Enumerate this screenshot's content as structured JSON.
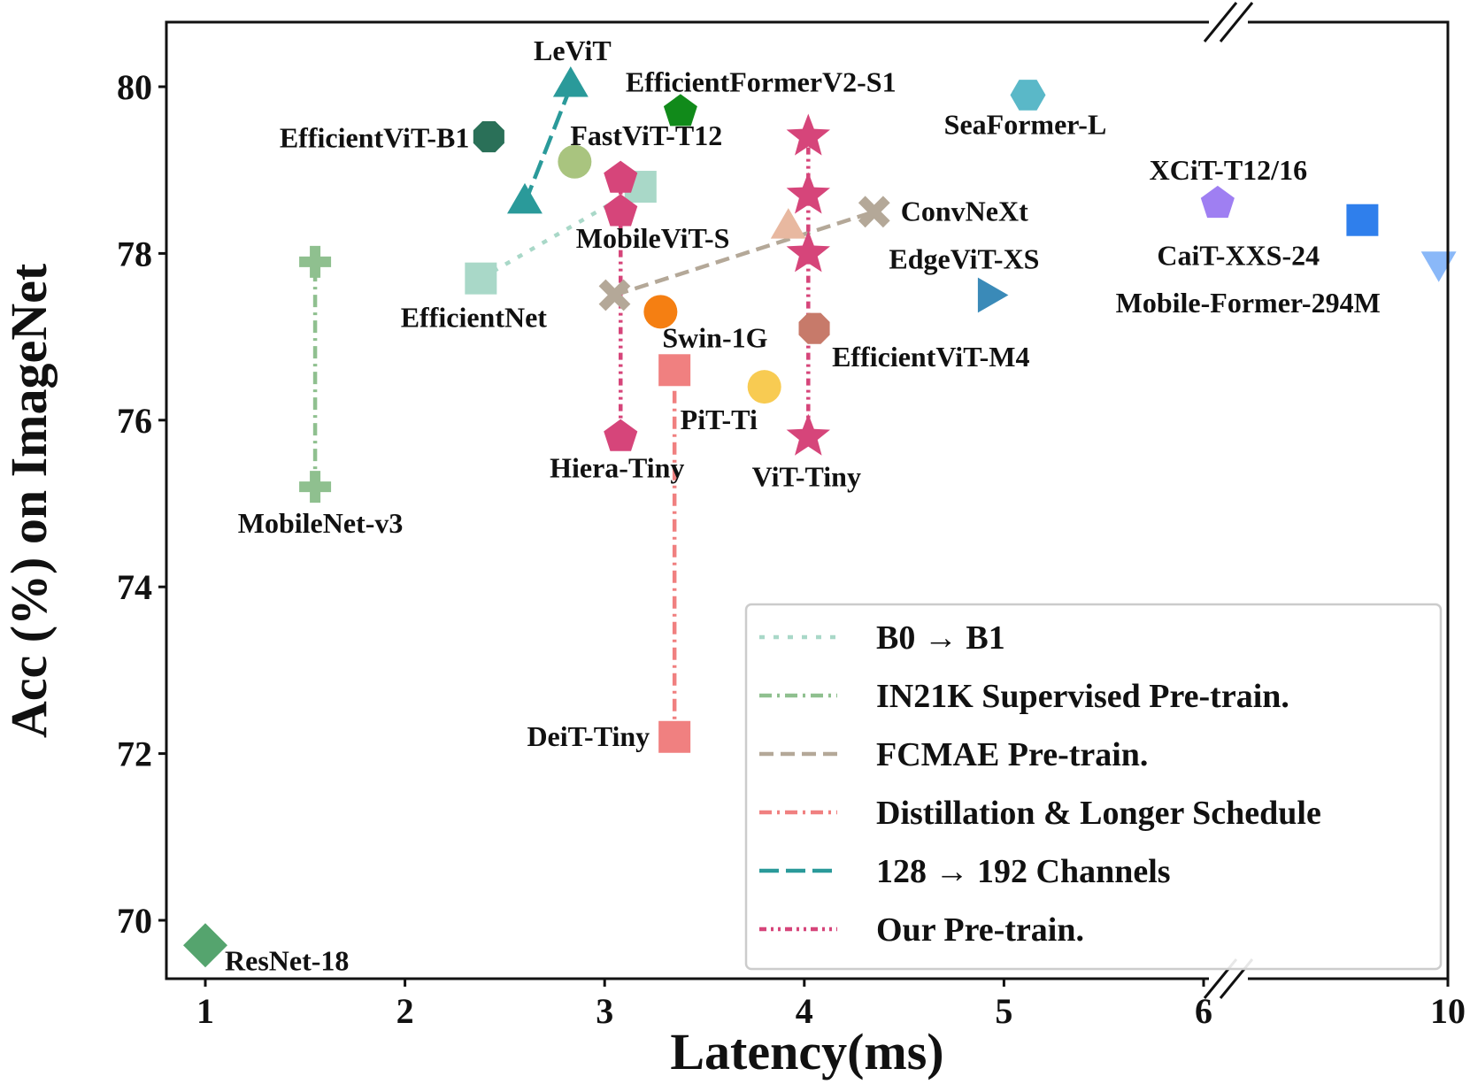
{
  "chart_data": {
    "type": "scatter",
    "xlabel": "Latency(ms)",
    "ylabel": "Acc (%) on ImageNet",
    "x_scale": "broken axis: linear 1-6, break, then 10",
    "x_ticks": [
      1,
      2,
      3,
      4,
      5,
      6,
      10
    ],
    "x_tick_labels": [
      "1",
      "2",
      "3",
      "4",
      "5",
      "6",
      "10"
    ],
    "y_ticks": [
      70,
      72,
      74,
      76,
      78,
      80
    ],
    "y_tick_labels": [
      "70",
      "72",
      "74",
      "76",
      "78",
      "80"
    ],
    "xlim": [
      0.8,
      10
    ],
    "ylim": [
      69.3,
      80.8
    ],
    "points": [
      {
        "name": "ResNet-18",
        "x": 1.0,
        "y": 69.7,
        "marker": "diamond",
        "color": "#55a46e"
      },
      {
        "name": "MobileNet-v3 (start)",
        "x": 1.55,
        "y": 75.2,
        "marker": "plus",
        "color": "#8fc08f"
      },
      {
        "name": "MobileNet-v3 (end)",
        "x": 1.55,
        "y": 77.9,
        "marker": "plus",
        "color": "#8fc08f"
      },
      {
        "name": "EfficientNet (B0)",
        "x": 2.38,
        "y": 77.7,
        "marker": "square",
        "color": "#a9d8c8"
      },
      {
        "name": "EfficientNet (B1)",
        "x": 3.18,
        "y": 78.8,
        "marker": "square",
        "color": "#a9d8c8"
      },
      {
        "name": "EfficientViT-B1",
        "x": 2.42,
        "y": 79.4,
        "marker": "octagon",
        "color": "#2a7058"
      },
      {
        "name": "LeViT (128)",
        "x": 2.6,
        "y": 78.6,
        "marker": "triangle-up",
        "color": "#2a9a9a"
      },
      {
        "name": "LeViT (192)",
        "x": 2.83,
        "y": 80.0,
        "marker": "triangle-up",
        "color": "#2a9a9a"
      },
      {
        "name": "FastViT-T12",
        "x": 2.85,
        "y": 79.1,
        "marker": "circle",
        "color": "#a9c47f"
      },
      {
        "name": "EfficientFormerV2-S1",
        "x": 3.38,
        "y": 79.7,
        "marker": "pentagon",
        "color": "#118a1a"
      },
      {
        "name": "Hiera-Tiny (base)",
        "x": 3.08,
        "y": 75.8,
        "marker": "pentagon",
        "color": "#d6457a"
      },
      {
        "name": "Hiera-Tiny (ours 1)",
        "x": 3.08,
        "y": 78.5,
        "marker": "pentagon",
        "color": "#d6457a"
      },
      {
        "name": "Hiera-Tiny (ours 2)",
        "x": 3.08,
        "y": 78.9,
        "marker": "pentagon",
        "color": "#d6457a"
      },
      {
        "name": "ConvNeXt (start)",
        "x": 3.05,
        "y": 77.5,
        "marker": "x",
        "color": "#b4a898"
      },
      {
        "name": "ConvNeXt (end)",
        "x": 4.35,
        "y": 78.5,
        "marker": "x",
        "color": "#b4a898"
      },
      {
        "name": "Swin-1G",
        "x": 3.28,
        "y": 77.3,
        "marker": "circle",
        "color": "#f57f12"
      },
      {
        "name": "MobileViT-S",
        "x": 3.92,
        "y": 78.3,
        "marker": "triangle-up",
        "color": "#e8b8a0"
      },
      {
        "name": "DeiT-Tiny (base)",
        "x": 3.35,
        "y": 72.2,
        "marker": "square",
        "color": "#f08080"
      },
      {
        "name": "DeiT-Tiny (distilled)",
        "x": 3.35,
        "y": 76.6,
        "marker": "square",
        "color": "#f08080"
      },
      {
        "name": "PiT-Ti",
        "x": 3.8,
        "y": 76.4,
        "marker": "circle",
        "color": "#f8cb52"
      },
      {
        "name": "ViT-Tiny (base)",
        "x": 4.02,
        "y": 75.8,
        "marker": "star",
        "color": "#d6457a"
      },
      {
        "name": "ViT-Tiny (ours 1)",
        "x": 4.02,
        "y": 78.0,
        "marker": "star",
        "color": "#d6457a"
      },
      {
        "name": "ViT-Tiny (ours 2)",
        "x": 4.02,
        "y": 78.7,
        "marker": "star",
        "color": "#d6457a"
      },
      {
        "name": "ViT-Tiny (ours 3)",
        "x": 4.02,
        "y": 79.4,
        "marker": "star",
        "color": "#d6457a"
      },
      {
        "name": "EfficientViT-M4",
        "x": 4.05,
        "y": 77.1,
        "marker": "octagon",
        "color": "#c77a6a"
      },
      {
        "name": "SeaFormer-L",
        "x": 5.12,
        "y": 79.9,
        "marker": "hexagon",
        "color": "#5ab8c8"
      },
      {
        "name": "EdgeViT-XS",
        "x": 4.92,
        "y": 77.5,
        "marker": "triangle-right",
        "color": "#3a8ab8"
      },
      {
        "name": "XCiT-T12/16",
        "x": 6.23,
        "y": 78.6,
        "marker": "pentagon",
        "color": "#9f7ff2"
      },
      {
        "name": "CaiT-XXS-24",
        "x": 8.6,
        "y": 78.4,
        "marker": "square",
        "color": "#2f7fec"
      },
      {
        "name": "Mobile-Former-294M",
        "x": 9.85,
        "y": 77.9,
        "marker": "triangle-down",
        "color": "#8ab8f8"
      }
    ],
    "lines": [
      {
        "legend": "B0 → B1",
        "from": [
          2.38,
          77.7
        ],
        "to": [
          3.18,
          78.8
        ],
        "style": "dotted",
        "color": "#a9d8c8"
      },
      {
        "legend": "IN21K Supervised Pre-train.",
        "from": [
          1.55,
          75.2
        ],
        "to": [
          1.55,
          77.9
        ],
        "style": "dashdot",
        "color": "#8fc08f"
      },
      {
        "legend": "FCMAE Pre-train.",
        "from": [
          3.05,
          77.5
        ],
        "to": [
          4.35,
          78.5
        ],
        "style": "dashed",
        "color": "#b4a898"
      },
      {
        "legend": "Distillation & Longer Schedule",
        "from": [
          3.35,
          72.2
        ],
        "to": [
          3.35,
          76.6
        ],
        "style": "dashdot",
        "color": "#f08080"
      },
      {
        "legend": "128 → 192 Channels",
        "from": [
          2.6,
          78.6
        ],
        "to": [
          2.83,
          80.0
        ],
        "style": "longdash",
        "color": "#2a9a9a"
      },
      {
        "legend": "Our Pre-train.",
        "from": [
          3.08,
          75.8
        ],
        "to": [
          3.08,
          78.9
        ],
        "style": "dashdotdot",
        "color": "#d6457a"
      },
      {
        "legend": "Our Pre-train.",
        "from": [
          4.02,
          75.8
        ],
        "to": [
          4.02,
          79.4
        ],
        "style": "dashdotdot",
        "color": "#d6457a"
      }
    ],
    "annotations": [
      {
        "text": "ResNet-18",
        "x": 1.0,
        "y": 69.7
      },
      {
        "text": "MobileNet-v3",
        "x": 1.55,
        "y": 75.2
      },
      {
        "text": "EfficientNet",
        "x": 2.38,
        "y": 77.7
      },
      {
        "text": "EfficientViT-B1",
        "x": 2.42,
        "y": 79.4
      },
      {
        "text": "LeViT",
        "x": 2.83,
        "y": 80.0
      },
      {
        "text": "FastViT-T12",
        "x": 2.85,
        "y": 79.1
      },
      {
        "text": "EfficientFormerV2-S1",
        "x": 3.38,
        "y": 79.7
      },
      {
        "text": "MobileViT-S",
        "x": 3.92,
        "y": 78.3
      },
      {
        "text": "Hiera-Tiny",
        "x": 3.08,
        "y": 75.8
      },
      {
        "text": "ConvNeXt",
        "x": 4.35,
        "y": 78.5
      },
      {
        "text": "Swin-1G",
        "x": 3.28,
        "y": 77.3
      },
      {
        "text": "DeiT-Tiny",
        "x": 3.35,
        "y": 72.2
      },
      {
        "text": "PiT-Ti",
        "x": 3.8,
        "y": 76.4
      },
      {
        "text": "ViT-Tiny",
        "x": 4.02,
        "y": 75.8
      },
      {
        "text": "EfficientViT-M4",
        "x": 4.05,
        "y": 77.1
      },
      {
        "text": "SeaFormer-L",
        "x": 5.12,
        "y": 79.9
      },
      {
        "text": "EdgeViT-XS",
        "x": 4.92,
        "y": 77.5
      },
      {
        "text": "XCiT-T12/16",
        "x": 6.23,
        "y": 78.6
      },
      {
        "text": "CaiT-XXS-24",
        "x": 8.6,
        "y": 78.4
      },
      {
        "text": "Mobile-Former-294M",
        "x": 9.85,
        "y": 77.9
      }
    ],
    "legend": {
      "placement": "bottom-right",
      "entries": [
        {
          "label": "B0 → B1",
          "style": "dotted",
          "color": "#a9d8c8"
        },
        {
          "label": "IN21K Supervised Pre-train.",
          "style": "dashdot",
          "color": "#8fc08f"
        },
        {
          "label": "FCMAE Pre-train.",
          "style": "dashed",
          "color": "#b4a898"
        },
        {
          "label": "Distillation & Longer Schedule",
          "style": "dashdot",
          "color": "#f08080"
        },
        {
          "label": "128 → 192 Channels",
          "style": "longdash",
          "color": "#2a9a9a"
        },
        {
          "label": "Our Pre-train.",
          "style": "dashdotdot",
          "color": "#d6457a"
        }
      ]
    },
    "grid": false
  }
}
